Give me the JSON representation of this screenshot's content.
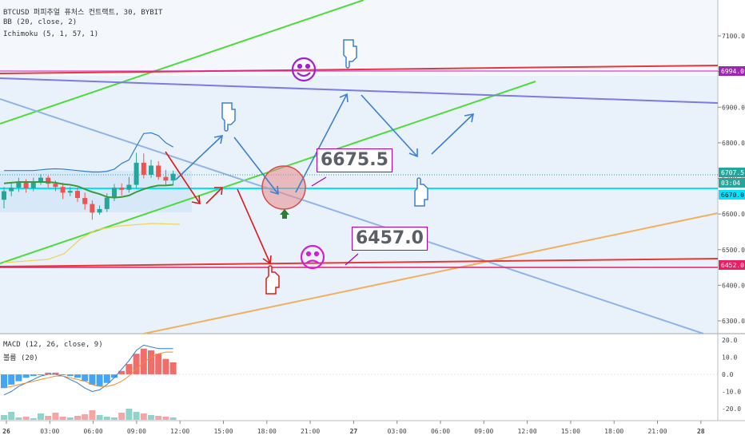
{
  "legend": {
    "symbol": "BTCUSD 퍼피추얼 퓨처스 컨트랙트, 30, BYBIT",
    "bb": "BB (20, close, 2)",
    "ichimoku": "Ichimoku (5, 1, 57, 1)",
    "macd": "MACD (12, 26, close, 9)",
    "volume": "볼륨 (20)"
  },
  "callouts": {
    "upper": "6675.5",
    "lower": "6457.0"
  },
  "price_axis": {
    "ticks": [
      "7100.0",
      "7000.0",
      "6900.0",
      "6800.0",
      "6700.0",
      "6600.0",
      "6500.0",
      "6400.0",
      "6300.0"
    ],
    "badges": [
      {
        "label": "6994.0",
        "color": "#9c27b0"
      },
      {
        "label": "6707.5",
        "color": "#26a69a"
      },
      {
        "label": "03:04",
        "color": "#26a69a"
      },
      {
        "label": "6670.0",
        "color": "#00e5ff"
      },
      {
        "label": "6452.0",
        "color": "#e91e63"
      }
    ]
  },
  "macd_axis": {
    "ticks": [
      "20.0",
      "10.0",
      "0.0",
      "-10.0",
      "-20.0"
    ]
  },
  "time_axis": {
    "ticks": [
      "26",
      "03:00",
      "06:00",
      "09:00",
      "12:00",
      "15:00",
      "18:00",
      "21:00",
      "27",
      "03:00",
      "06:00",
      "09:00",
      "12:00",
      "15:00",
      "18:00",
      "21:00",
      "28"
    ]
  },
  "colors": {
    "up": "#26a69a",
    "down": "#ef5350",
    "green_line": "#4ddb3b",
    "red_line": "#e53935",
    "purple_line": "#7b7be0",
    "trend_down": "#90b4e8",
    "orange_line": "#f0b060",
    "arrow_blue": "#3d7fd1",
    "arrow_red": "#e01818",
    "cyan": "#00e5ff",
    "magenta": "#d41ed4"
  },
  "chart_data": [
    {
      "type": "candlestick",
      "title": "BTCUSD 퍼피추얼 퓨처스 컨트랙트, 30, BYBIT",
      "x": [
        "26 00:00",
        "00:30",
        "01:00",
        "01:30",
        "02:00",
        "02:30",
        "03:00",
        "03:30",
        "04:00",
        "04:30",
        "05:00",
        "05:30",
        "06:00",
        "06:30",
        "07:00",
        "07:30",
        "08:00",
        "08:30",
        "09:00",
        "09:30",
        "10:00",
        "10:30",
        "11:00",
        "11:30"
      ],
      "open": [
        6640,
        6664,
        6674,
        6690,
        6672,
        6690,
        6702,
        6685,
        6676,
        6660,
        6665,
        6645,
        6628,
        6604,
        6614,
        6646,
        6674,
        6668,
        6682,
        6744,
        6710,
        6736,
        6704,
        6694
      ],
      "close": [
        6664,
        6674,
        6690,
        6672,
        6690,
        6702,
        6685,
        6676,
        6660,
        6665,
        6645,
        6628,
        6604,
        6614,
        6646,
        6674,
        6668,
        6682,
        6744,
        6710,
        6736,
        6704,
        6694,
        6713
      ],
      "high": [
        6676,
        6686,
        6702,
        6698,
        6702,
        6712,
        6708,
        6694,
        6688,
        6676,
        6674,
        6660,
        6638,
        6624,
        6658,
        6684,
        6686,
        6704,
        6772,
        6770,
        6752,
        6748,
        6724,
        6722
      ],
      "low": [
        6616,
        6650,
        6662,
        6660,
        6664,
        6682,
        6674,
        6664,
        6642,
        6650,
        6634,
        6612,
        6584,
        6598,
        6606,
        6636,
        6652,
        6660,
        6672,
        6700,
        6702,
        6696,
        6682,
        6680
      ],
      "ylim": [
        6260,
        7180
      ],
      "series_lines": [
        {
          "name": "BB (20, close, 2)",
          "values": [
            6722,
            6722,
            6722,
            6722,
            6722,
            6724,
            6726,
            6727,
            6726,
            6724,
            6722,
            6720,
            6718,
            6718,
            6720,
            6726,
            6742,
            6752,
            6790,
            6826,
            6828,
            6820,
            6800,
            6788
          ]
        },
        {
          "name": "Ichimoku (5, 1, 57, 1)",
          "values": [
            6686,
            6688,
            6690,
            6690,
            6690,
            6690,
            6690,
            6688,
            6684,
            6682,
            6678,
            6670,
            6662,
            6656,
            6648,
            6646,
            6648,
            6652,
            6662,
            6670,
            6676,
            6680,
            6680,
            6682
          ]
        }
      ]
    },
    {
      "type": "bar",
      "title": "MACD (12, 26, close, 9)",
      "ylim": [
        -25,
        27
      ],
      "values": [
        -8,
        -6,
        -4,
        -2,
        -1,
        0,
        1,
        1,
        0,
        -1,
        -2,
        -4,
        -6,
        -7,
        -5,
        -2,
        2,
        6,
        12,
        15,
        14,
        12,
        9,
        7
      ]
    }
  ]
}
